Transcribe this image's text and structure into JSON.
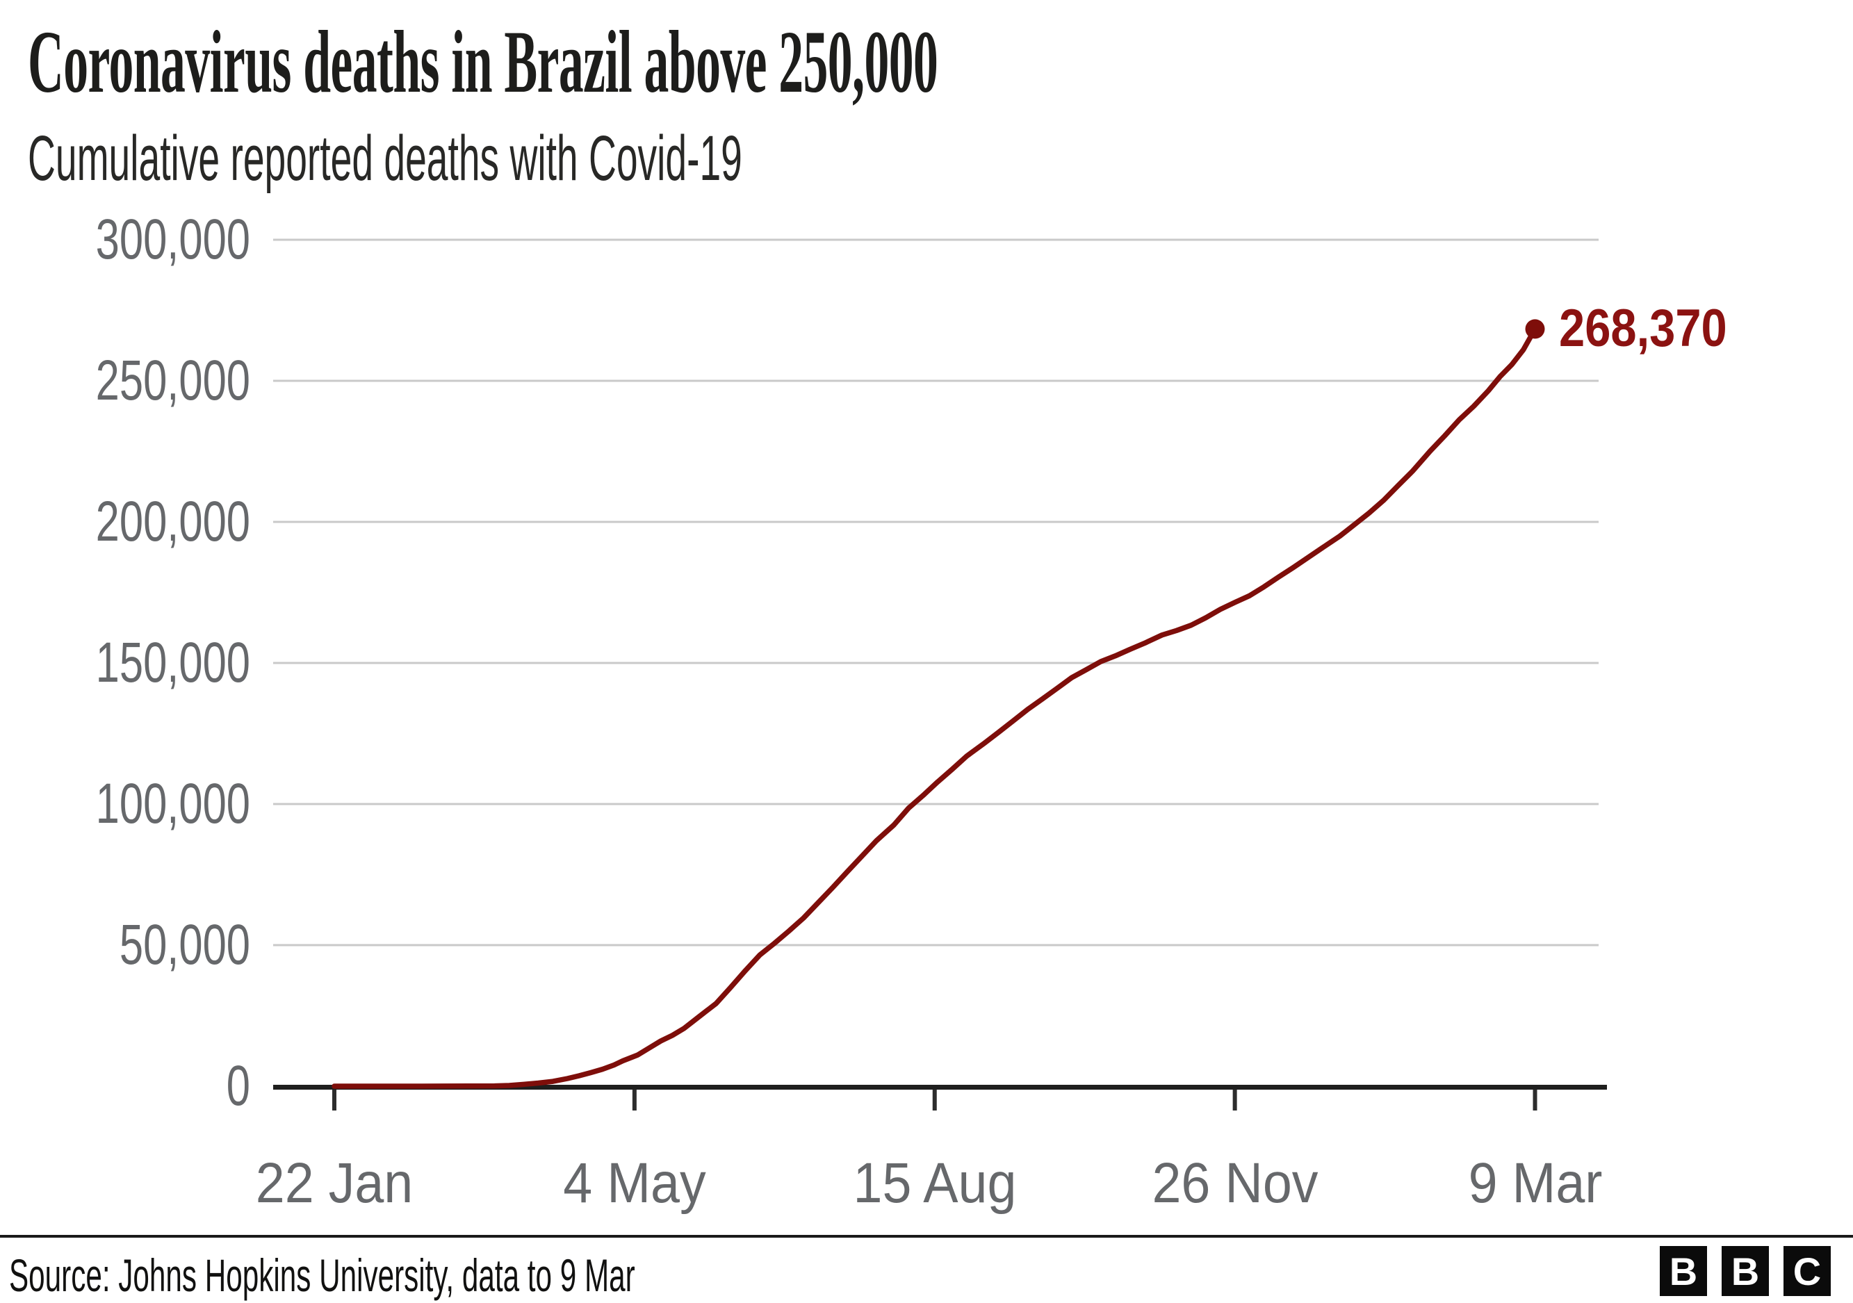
{
  "header": {
    "title": "Coronavirus deaths in Brazil above 250,000",
    "subtitle": "Cumulative reported deaths with Covid-19"
  },
  "footer": {
    "source": "Source: Johns Hopkins University, data to 9 Mar",
    "logo_letters": [
      "B",
      "B",
      "C"
    ]
  },
  "colors": {
    "accent_line": "#7e0e0a",
    "accent_label": "#8b1211",
    "grid": "#c9c9c9",
    "axis": "#1f1f1e",
    "tick_mark": "#2d2d2d",
    "tick_label": "#66686b",
    "title_text": "#1d1d1b",
    "subtitle_text": "#282826"
  },
  "chart_data": {
    "type": "line",
    "title": "Coronavirus deaths in Brazil above 250,000",
    "subtitle": "Cumulative reported deaths with Covid-19",
    "grid": true,
    "legend_position": "none",
    "ylim": [
      0,
      300000
    ],
    "y_tick_values": [
      0,
      50000,
      100000,
      150000,
      200000,
      250000,
      300000
    ],
    "y_tick_labels": [
      "0",
      "50,000",
      "100,000",
      "150,000",
      "200,000",
      "250,000",
      "300,000"
    ],
    "x_tick_days": [
      0,
      103,
      206,
      309,
      412
    ],
    "x_tick_labels": [
      "22 Jan",
      "4 May",
      "15 Aug",
      "26 Nov",
      "9 Mar"
    ],
    "end_label": "268,370",
    "end_point": {
      "day": 412,
      "value": 268370,
      "date": "9 Mar"
    },
    "series_points": [
      [
        0,
        0
      ],
      [
        30,
        0
      ],
      [
        55,
        100
      ],
      [
        60,
        250
      ],
      [
        65,
        650
      ],
      [
        70,
        1100
      ],
      [
        75,
        1700
      ],
      [
        80,
        2700
      ],
      [
        84,
        3700
      ],
      [
        88,
        4800
      ],
      [
        92,
        6000
      ],
      [
        96,
        7500
      ],
      [
        99,
        9000
      ],
      [
        104,
        11000
      ],
      [
        108,
        13500
      ],
      [
        112,
        16000
      ],
      [
        116,
        18000
      ],
      [
        120,
        20500
      ],
      [
        125,
        24500
      ],
      [
        131,
        29314
      ],
      [
        136,
        35000
      ],
      [
        141,
        40919
      ],
      [
        146,
        46500
      ],
      [
        151,
        50617
      ],
      [
        156,
        55000
      ],
      [
        161,
        59594
      ],
      [
        166,
        65000
      ],
      [
        171,
        70398
      ],
      [
        176,
        76000
      ],
      [
        181,
        81487
      ],
      [
        186,
        87000
      ],
      [
        192,
        92568
      ],
      [
        197,
        98500
      ],
      [
        202,
        103026
      ],
      [
        207,
        107800
      ],
      [
        212,
        112304
      ],
      [
        217,
        117000
      ],
      [
        223,
        121515
      ],
      [
        228,
        125500
      ],
      [
        233,
        129522
      ],
      [
        238,
        133600
      ],
      [
        243,
        137272
      ],
      [
        248,
        141000
      ],
      [
        253,
        144767
      ],
      [
        258,
        147600
      ],
      [
        263,
        150488
      ],
      [
        268,
        152500
      ],
      [
        273,
        154837
      ],
      [
        278,
        157000
      ],
      [
        284,
        159902
      ],
      [
        289,
        161500
      ],
      [
        294,
        163373
      ],
      [
        299,
        166000
      ],
      [
        304,
        168989
      ],
      [
        309,
        171460
      ],
      [
        314,
        173817
      ],
      [
        319,
        177000
      ],
      [
        324,
        180437
      ],
      [
        329,
        183800
      ],
      [
        334,
        187291
      ],
      [
        339,
        190800
      ],
      [
        345,
        194949
      ],
      [
        350,
        199000
      ],
      [
        355,
        203100
      ],
      [
        360,
        207600
      ],
      [
        365,
        212831
      ],
      [
        370,
        218000
      ],
      [
        376,
        225099
      ],
      [
        381,
        230500
      ],
      [
        386,
        236201
      ],
      [
        391,
        241000
      ],
      [
        396,
        246504
      ],
      [
        400,
        251500
      ],
      [
        404,
        255720
      ],
      [
        408,
        261000
      ],
      [
        412,
        268370
      ]
    ]
  }
}
